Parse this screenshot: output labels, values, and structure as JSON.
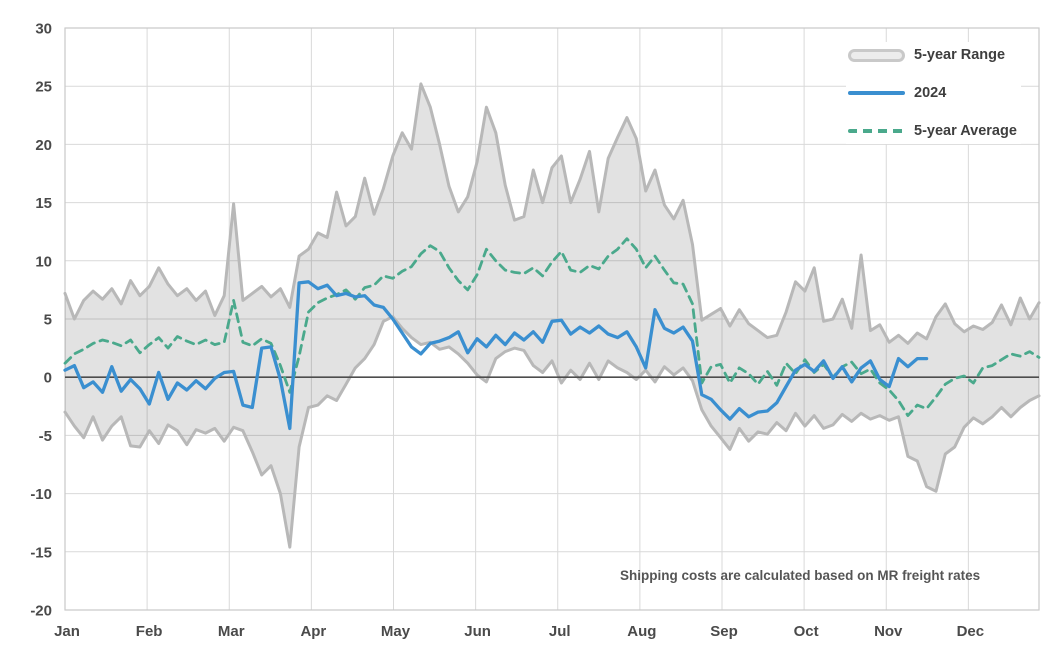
{
  "chart_data": {
    "type": "line",
    "title": "",
    "annotation": "Shipping costs are calculated based on MR freight rates",
    "x_axis": {
      "labels": [
        "Jan",
        "Feb",
        "Mar",
        "Apr",
        "May",
        "Jun",
        "Jul",
        "Aug",
        "Sep",
        "Oct",
        "Nov",
        "Dec"
      ]
    },
    "y_axis": {
      "min": -20,
      "max": 30,
      "step": 5
    },
    "grid": true,
    "zero_line": true,
    "legend": [
      {
        "label": "5-year Range",
        "type": "band",
        "fill": "#e2e2e2",
        "stroke": "#b8b8b8"
      },
      {
        "label": "2024",
        "type": "line",
        "color": "#3a8fd0"
      },
      {
        "label": "5-year Average",
        "type": "dashed-line",
        "color": "#4aa98c"
      }
    ],
    "series_note": "values in index points; 105 points spaced evenly Jan-Dec; 2024 series ends mid-November",
    "series": {
      "range_upper": [
        7.2,
        5.0,
        6.6,
        7.4,
        6.7,
        7.6,
        6.3,
        8.3,
        7.0,
        7.8,
        9.4,
        8.0,
        7.0,
        7.6,
        6.6,
        7.4,
        5.3,
        7.0,
        14.9,
        6.6,
        7.2,
        7.8,
        6.9,
        7.6,
        6.0,
        10.4,
        11.0,
        12.4,
        12.0,
        15.9,
        13.0,
        13.8,
        17.1,
        14.0,
        16.2,
        19.0,
        21.0,
        19.6,
        25.2,
        23.2,
        20.0,
        16.4,
        14.2,
        15.5,
        18.5,
        23.2,
        21.0,
        16.5,
        13.5,
        13.8,
        17.8,
        15.0,
        18.0,
        19.0,
        15.0,
        17.0,
        19.4,
        14.2,
        18.8,
        20.6,
        22.3,
        20.5,
        16.0,
        17.8,
        14.8,
        13.6,
        15.2,
        11.4,
        4.9,
        5.4,
        5.9,
        4.4,
        5.8,
        4.6,
        4.0,
        3.4,
        3.6,
        5.6,
        8.2,
        7.4,
        9.4,
        4.8,
        5.0,
        6.7,
        4.2,
        10.5,
        4.0,
        4.5,
        3.0,
        3.6,
        2.9,
        3.8,
        3.3,
        5.2,
        6.3,
        4.6,
        3.9,
        4.4,
        4.1,
        4.7,
        6.2,
        4.5,
        6.8,
        5.0,
        6.4
      ],
      "range_lower": [
        -3.0,
        -4.2,
        -5.2,
        -3.4,
        -5.4,
        -4.2,
        -3.4,
        -5.9,
        -6.0,
        -4.6,
        -5.7,
        -4.1,
        -4.6,
        -5.8,
        -4.5,
        -4.8,
        -4.4,
        -5.5,
        -4.3,
        -4.6,
        -6.4,
        -8.4,
        -7.6,
        -10.0,
        -14.6,
        -6.0,
        -2.6,
        -2.4,
        -1.6,
        -2.0,
        -0.6,
        0.8,
        1.6,
        2.8,
        4.8,
        5.2,
        4.2,
        3.4,
        2.8,
        3.0,
        2.4,
        2.6,
        2.0,
        1.2,
        0.2,
        -0.4,
        1.6,
        2.2,
        2.5,
        2.3,
        1.0,
        0.4,
        1.4,
        -0.5,
        0.6,
        -0.2,
        1.2,
        -0.2,
        1.4,
        0.8,
        0.4,
        -0.2,
        0.6,
        -0.4,
        0.9,
        0.2,
        0.8,
        -0.3,
        -2.8,
        -4.2,
        -5.2,
        -6.2,
        -4.4,
        -5.5,
        -4.7,
        -4.9,
        -3.9,
        -4.6,
        -3.1,
        -4.2,
        -3.3,
        -4.4,
        -4.1,
        -3.2,
        -3.8,
        -3.1,
        -3.6,
        -3.3,
        -3.7,
        -3.4,
        -6.8,
        -7.2,
        -9.4,
        -9.8,
        -6.6,
        -6.0,
        -4.3,
        -3.5,
        -4.0,
        -3.4,
        -2.6,
        -3.4,
        -2.6,
        -2.0,
        -1.6
      ],
      "avg_5yr": [
        1.2,
        2.0,
        2.4,
        2.9,
        3.2,
        3.0,
        2.7,
        3.2,
        2.1,
        2.8,
        3.4,
        2.5,
        3.5,
        3.1,
        2.8,
        3.2,
        2.8,
        3.0,
        6.6,
        3.0,
        2.7,
        3.3,
        2.9,
        1.0,
        -1.3,
        1.8,
        5.6,
        6.4,
        6.8,
        7.1,
        7.5,
        6.7,
        7.7,
        7.9,
        8.7,
        8.5,
        9.1,
        9.5,
        10.6,
        11.3,
        10.8,
        9.4,
        8.3,
        7.5,
        8.8,
        11.0,
        10.0,
        9.2,
        9.0,
        8.9,
        9.4,
        8.7,
        9.9,
        10.8,
        9.2,
        9.0,
        9.6,
        9.3,
        10.4,
        11.0,
        11.9,
        11.0,
        9.4,
        10.4,
        9.2,
        8.1,
        8.0,
        6.3,
        -0.5,
        0.9,
        1.1,
        -0.5,
        0.8,
        0.3,
        -0.6,
        0.5,
        -0.7,
        1.2,
        0.3,
        1.5,
        0.4,
        1.1,
        0.0,
        0.9,
        1.3,
        0.3,
        0.7,
        -0.5,
        -1.1,
        -2.0,
        -3.3,
        -2.4,
        -2.7,
        -1.7,
        -0.6,
        -0.1,
        0.1,
        -0.5,
        0.8,
        1.0,
        1.5,
        2.0,
        1.8,
        2.2,
        1.7
      ],
      "y2024": [
        0.6,
        1.0,
        -0.9,
        -0.4,
        -1.3,
        0.9,
        -1.2,
        -0.2,
        -1.0,
        -2.3,
        0.4,
        -1.9,
        -0.5,
        -1.1,
        -0.3,
        -1.0,
        -0.1,
        0.4,
        0.5,
        -2.4,
        -2.6,
        2.5,
        2.6,
        -0.2,
        -4.4,
        8.1,
        8.2,
        7.6,
        7.9,
        7.0,
        7.2,
        6.9,
        7.0,
        6.2,
        6.0,
        5.0,
        3.8,
        2.6,
        2.0,
        2.9,
        3.1,
        3.4,
        3.9,
        2.1,
        3.3,
        2.6,
        3.6,
        2.8,
        3.8,
        3.2,
        3.9,
        3.0,
        4.8,
        4.9,
        3.7,
        4.3,
        3.8,
        4.4,
        3.7,
        3.4,
        3.9,
        2.6,
        0.8,
        5.8,
        4.2,
        3.8,
        4.3,
        3.1,
        -1.5,
        -1.9,
        -2.8,
        -3.6,
        -2.7,
        -3.4,
        -3.0,
        -2.9,
        -2.2,
        -0.8,
        0.6,
        1.1,
        0.5,
        1.4,
        -0.1,
        0.9,
        -0.4,
        0.8,
        1.4,
        -0.2,
        -0.8,
        1.6,
        0.9,
        1.6,
        1.6,
        null,
        null,
        null,
        null,
        null,
        null,
        null,
        null,
        null,
        null,
        null,
        null
      ]
    },
    "colors": {
      "band_fill": "#e2e2e2",
      "band_stroke": "#b8b8b8",
      "line_2024": "#3a8fd0",
      "line_avg": "#4aa98c",
      "grid": "#d9d9d9",
      "frame": "#c9c9c9",
      "zero_line": "#4d4d4d",
      "tick_text": "#4a4a4a"
    }
  }
}
